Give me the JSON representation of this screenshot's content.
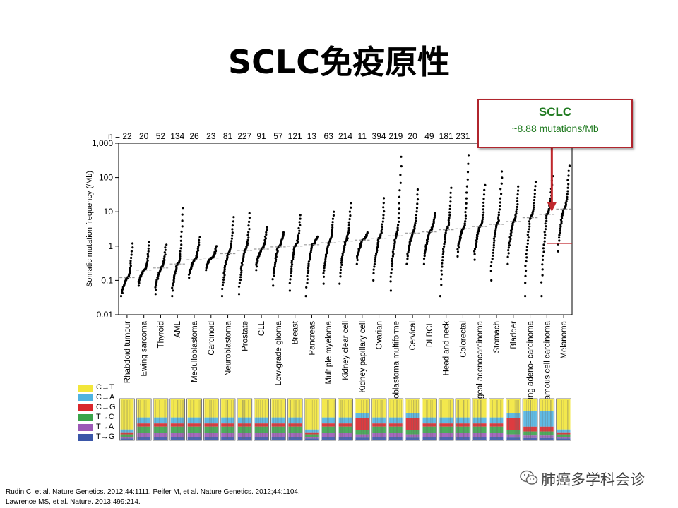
{
  "slide": {
    "title": "SCLC免疫原性",
    "callout_title": "SCLC",
    "callout_subtitle": "~8.88 mutations/Mb",
    "references": [
      "Rudin C, et al. Nature Genetics. 2012;44:1111, Peifer M, et al. Nature Genetics. 2012;44:1104.",
      "Lawrence MS, et al. Nature. 2013;499:214."
    ],
    "watermark": "肺癌多学科会诊",
    "watermark_icon": "wechat-icon"
  },
  "colors": {
    "callout_border": "#b0252d",
    "callout_text": "#1f7a1f",
    "arrow": "#c0282d",
    "dots": "#000000",
    "median_line": "#9a9a9a"
  },
  "legend": [
    {
      "label": "C→T",
      "color": "#f2e63a"
    },
    {
      "label": "C→A",
      "color": "#4fb3e0"
    },
    {
      "label": "C→G",
      "color": "#d9262b"
    },
    {
      "label": "T→C",
      "color": "#3aa44a"
    },
    {
      "label": "T→A",
      "color": "#9b59b6"
    },
    {
      "label": "T→G",
      "color": "#3a56a8"
    }
  ],
  "chart_data": {
    "type": "scatter",
    "ylabel": "Somatic mutation frequency (/Mb)",
    "yscale": "log",
    "ylim": [
      0.01,
      1000
    ],
    "yticks": [
      "0.01",
      "0.1",
      "1",
      "10",
      "100",
      "1,000"
    ],
    "n_prefix": "n = ",
    "grid": false,
    "categories": [
      "Rhabdoid tumour",
      "Ewing sarcoma",
      "Thyroid",
      "AML",
      "Medulloblastoma",
      "Carcinoid",
      "Neuroblastoma",
      "Prostate",
      "CLL",
      "Low-grade glioma",
      "Breast",
      "Pancreas",
      "Multiple myeloma",
      "Kidney clear cell",
      "Kidney papillary cell",
      "Ovarian",
      "Glioblastoma multiforme",
      "Cervical",
      "DLBCL",
      "Head and neck",
      "Colorectal",
      "Oesophageal adenocarcinoma",
      "Stomach",
      "Bladder",
      "Lung adeno- carcinoma",
      "Lung squamous cell carcinoma",
      "Melanoma"
    ],
    "n": [
      "22",
      "20",
      "52",
      "134",
      "26",
      "23",
      "81",
      "227",
      "91",
      "57",
      "121",
      "13",
      "63",
      "214",
      "11",
      "394",
      "219",
      "20",
      "49",
      "181",
      "231",
      "",
      "",
      "",
      "",
      "",
      ""
    ],
    "median": [
      0.12,
      0.2,
      0.23,
      0.3,
      0.4,
      0.45,
      0.6,
      0.75,
      0.82,
      0.95,
      1.0,
      1.1,
      1.25,
      1.4,
      1.5,
      1.7,
      2.0,
      2.4,
      2.6,
      3.0,
      3.2,
      3.7,
      4.3,
      5.2,
      6.7,
      8.4,
      12
    ],
    "min": [
      0.035,
      0.07,
      0.04,
      0.035,
      0.12,
      0.2,
      0.035,
      0.04,
      0.2,
      0.07,
      0.05,
      0.035,
      0.08,
      0.08,
      0.3,
      0.1,
      0.05,
      0.3,
      0.3,
      0.035,
      0.5,
      0.4,
      0.1,
      0.3,
      0.035,
      0.035,
      0.7
    ],
    "max": [
      1.2,
      1.3,
      1.1,
      13,
      1.8,
      1.0,
      7,
      9,
      3.5,
      2.5,
      8,
      1.9,
      10,
      18,
      2.5,
      25,
      400,
      45,
      9,
      50,
      450,
      60,
      150,
      55,
      75,
      110,
      220
    ],
    "annotation": {
      "category": "Lung squamous cell carcinoma",
      "value": 8.88,
      "text": "SCLC ~8.88 mutations/Mb"
    }
  }
}
